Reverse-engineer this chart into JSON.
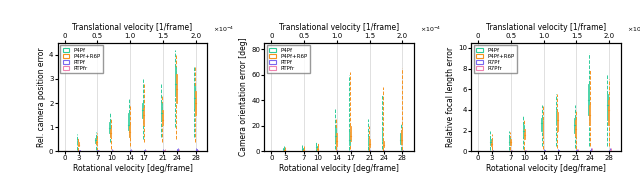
{
  "rotational_velocities": [
    0,
    3,
    7,
    10,
    14,
    17,
    21,
    24,
    28
  ],
  "trans_ticks_rot": [
    0,
    7,
    14,
    21,
    28
  ],
  "trans_tick_labels": [
    "0",
    "0.5",
    "1.0",
    "1.5",
    "2.0"
  ],
  "methods1": [
    "P4Pf",
    "P4Pf+R6P",
    "RTPf",
    "RTPfr"
  ],
  "methods2": [
    "P4Pf",
    "P4Pf+R6P",
    "RTPf",
    "RTPfr"
  ],
  "methods3": [
    "P4Pf",
    "P4Pf+R6P",
    "R7Pf",
    "R7Pfr"
  ],
  "colors": {
    "P4Pf": "#2ecc9a",
    "P4Pf+R6P": "#f5921e",
    "RTPf": "#7b68ee",
    "RTPfr": "#ee82b0",
    "R7Pf": "#7b68ee",
    "R7Pfr": "#ee82b0"
  },
  "plot1": {
    "ylabel": "Rel. camera position error",
    "ylim": [
      0,
      4.5
    ],
    "yticks": [
      0,
      1,
      2,
      3,
      4
    ],
    "boxes": {
      "P4Pf": {
        "0": [
          0,
          0,
          0,
          0,
          0
        ],
        "3": [
          0.05,
          0.25,
          0.35,
          0.45,
          0.7
        ],
        "7": [
          0.05,
          0.35,
          0.45,
          0.55,
          0.8
        ],
        "10": [
          0.4,
          0.75,
          0.95,
          1.2,
          1.6
        ],
        "14": [
          0.6,
          0.9,
          1.1,
          1.6,
          2.2
        ],
        "17": [
          0.5,
          1.4,
          1.7,
          2.0,
          3.0
        ],
        "21": [
          0.6,
          1.3,
          1.6,
          2.0,
          2.8
        ],
        "24": [
          1.0,
          2.3,
          2.8,
          3.5,
          4.2
        ],
        "28": [
          0.6,
          1.8,
          2.2,
          2.7,
          3.5
        ]
      },
      "P4Pf+R6P": {
        "0": [
          0,
          0,
          0,
          0,
          0
        ],
        "3": [
          0.02,
          0.2,
          0.28,
          0.38,
          0.6
        ],
        "7": [
          0.03,
          0.3,
          0.4,
          0.5,
          0.75
        ],
        "10": [
          0.1,
          0.6,
          0.75,
          0.95,
          1.4
        ],
        "14": [
          0.2,
          0.6,
          0.8,
          1.1,
          1.9
        ],
        "17": [
          0.4,
          1.1,
          1.5,
          1.8,
          2.8
        ],
        "21": [
          0.4,
          1.1,
          1.3,
          1.7,
          2.3
        ],
        "24": [
          0.5,
          2.0,
          2.6,
          3.2,
          4.0
        ],
        "28": [
          0.4,
          1.5,
          2.0,
          2.5,
          3.5
        ]
      },
      "RTPf": {
        "0": [
          0,
          0,
          0,
          0,
          0
        ],
        "3": [
          0,
          0,
          0.02,
          0.04,
          0.07
        ],
        "7": [
          0,
          0,
          0.02,
          0.04,
          0.07
        ],
        "10": [
          0,
          0,
          0.02,
          0.04,
          0.08
        ],
        "14": [
          0,
          0,
          0.02,
          0.05,
          0.1
        ],
        "17": [
          0,
          0,
          0.02,
          0.05,
          0.1
        ],
        "21": [
          0,
          0,
          0.03,
          0.06,
          0.1
        ],
        "24": [
          0,
          0.01,
          0.04,
          0.08,
          0.15
        ],
        "28": [
          0,
          0.01,
          0.04,
          0.08,
          0.15
        ]
      },
      "RTPfr": {
        "0": [
          0,
          0,
          0,
          0,
          0
        ],
        "3": [
          0,
          0,
          0.01,
          0.02,
          0.04
        ],
        "7": [
          0,
          0,
          0.01,
          0.02,
          0.04
        ],
        "10": [
          0,
          0,
          0.01,
          0.03,
          0.06
        ],
        "14": [
          0,
          0,
          0.01,
          0.03,
          0.07
        ],
        "17": [
          0,
          0,
          0.01,
          0.03,
          0.07
        ],
        "21": [
          0,
          0.01,
          0.02,
          0.04,
          0.08
        ],
        "24": [
          0,
          0.01,
          0.03,
          0.05,
          0.1
        ],
        "28": [
          0,
          0.01,
          0.03,
          0.05,
          0.1
        ]
      }
    }
  },
  "plot2": {
    "ylabel": "Camera orientation error [deg]",
    "ylim": [
      0,
      85
    ],
    "yticks": [
      0,
      20,
      40,
      60,
      80
    ],
    "boxes": {
      "P4Pf": {
        "0": [
          0,
          0,
          0,
          0,
          0
        ],
        "3": [
          0,
          0.8,
          1.5,
          2.5,
          4.5
        ],
        "7": [
          0,
          0.8,
          1.8,
          2.8,
          5.0
        ],
        "10": [
          0,
          1.5,
          3.0,
          4.5,
          8.0
        ],
        "14": [
          2,
          7,
          12,
          18,
          33
        ],
        "17": [
          1,
          5,
          9,
          15,
          60
        ],
        "21": [
          1,
          4,
          7,
          11,
          25
        ],
        "24": [
          2,
          8,
          11,
          17,
          44
        ],
        "28": [
          1,
          6,
          9,
          14,
          22
        ]
      },
      "P4Pf+R6P": {
        "0": [
          0,
          0,
          0,
          0,
          0
        ],
        "3": [
          0,
          0.4,
          0.8,
          1.5,
          3.0
        ],
        "7": [
          0,
          0.5,
          1.0,
          2.0,
          4.5
        ],
        "10": [
          0,
          1.0,
          2.0,
          3.5,
          7.0
        ],
        "14": [
          1,
          4,
          8,
          14,
          25
        ],
        "17": [
          2,
          8,
          12,
          20,
          62
        ],
        "21": [
          0.5,
          3,
          6,
          10,
          20
        ],
        "24": [
          0.5,
          3,
          5,
          8,
          50
        ],
        "28": [
          1,
          6,
          9,
          17,
          65
        ]
      },
      "RTPf": {
        "0": [
          0,
          0,
          0,
          0,
          0
        ],
        "3": [
          0,
          0,
          0.05,
          0.1,
          0.3
        ],
        "7": [
          0,
          0,
          0.05,
          0.15,
          0.35
        ],
        "10": [
          0,
          0,
          0.1,
          0.2,
          0.5
        ],
        "14": [
          0,
          0,
          0.1,
          0.3,
          0.7
        ],
        "17": [
          0,
          0,
          0.1,
          0.3,
          0.8
        ],
        "21": [
          0,
          0,
          0.15,
          0.4,
          1.0
        ],
        "24": [
          0,
          0.05,
          0.2,
          0.5,
          1.2
        ],
        "28": [
          0,
          0.05,
          0.2,
          0.5,
          1.2
        ]
      },
      "RTPfr": {
        "0": [
          0,
          0,
          0,
          0,
          0
        ],
        "3": [
          0,
          0,
          0.02,
          0.05,
          0.15
        ],
        "7": [
          0,
          0,
          0.02,
          0.06,
          0.18
        ],
        "10": [
          0,
          0,
          0.03,
          0.08,
          0.2
        ],
        "14": [
          0,
          0,
          0.03,
          0.1,
          0.25
        ],
        "17": [
          0,
          0,
          0.03,
          0.1,
          0.3
        ],
        "21": [
          0,
          0,
          0.05,
          0.15,
          0.4
        ],
        "24": [
          0,
          0,
          0.05,
          0.15,
          0.5
        ],
        "28": [
          0,
          0.02,
          0.07,
          0.2,
          0.6
        ]
      }
    }
  },
  "plot3": {
    "ylabel": "Relative focal length error",
    "ylim": [
      0,
      10.5
    ],
    "yticks": [
      0,
      2,
      4,
      6,
      8,
      10
    ],
    "boxes": {
      "P4Pf": {
        "0": [
          0,
          0,
          0,
          0,
          0
        ],
        "3": [
          0.1,
          0.6,
          0.9,
          1.2,
          2.0
        ],
        "7": [
          0.1,
          0.6,
          0.9,
          1.3,
          2.0
        ],
        "10": [
          0.2,
          1.5,
          2.0,
          2.5,
          3.5
        ],
        "14": [
          0.5,
          2.0,
          2.7,
          3.2,
          4.5
        ],
        "17": [
          0.5,
          2.5,
          3.3,
          4.0,
          5.5
        ],
        "21": [
          0.3,
          1.8,
          2.5,
          3.2,
          4.5
        ],
        "24": [
          0.5,
          3.5,
          5.0,
          6.5,
          9.5
        ],
        "28": [
          0.5,
          3.0,
          4.5,
          5.5,
          7.5
        ]
      },
      "P4Pf+R6P": {
        "0": [
          0,
          0,
          0,
          0,
          0
        ],
        "3": [
          0.1,
          0.5,
          0.75,
          1.0,
          1.7
        ],
        "7": [
          0.1,
          0.6,
          0.9,
          1.2,
          1.9
        ],
        "10": [
          0.1,
          1.2,
          1.6,
          2.2,
          3.0
        ],
        "14": [
          0.2,
          1.5,
          2.2,
          3.0,
          4.5
        ],
        "17": [
          0.3,
          2.0,
          3.0,
          3.8,
          5.5
        ],
        "21": [
          0.2,
          1.5,
          2.2,
          3.0,
          4.0
        ],
        "24": [
          0.5,
          2.5,
          3.5,
          4.5,
          8.0
        ],
        "28": [
          0.5,
          2.5,
          4.0,
          5.0,
          7.0
        ]
      },
      "R7Pf": {
        "0": [
          0,
          0,
          0,
          0,
          0
        ],
        "3": [
          0,
          0,
          0.02,
          0.05,
          0.1
        ],
        "7": [
          0,
          0,
          0.02,
          0.05,
          0.12
        ],
        "10": [
          0,
          0,
          0.03,
          0.07,
          0.15
        ],
        "14": [
          0,
          0,
          0.03,
          0.08,
          0.18
        ],
        "17": [
          0,
          0,
          0.04,
          0.1,
          0.2
        ],
        "21": [
          0,
          0.02,
          0.05,
          0.12,
          0.25
        ],
        "24": [
          0,
          0.02,
          0.06,
          0.15,
          0.3
        ],
        "28": [
          0,
          0.02,
          0.07,
          0.17,
          0.35
        ]
      },
      "R7Pfr": {
        "0": [
          0,
          0,
          0,
          0,
          0
        ],
        "3": [
          0,
          0,
          0.01,
          0.03,
          0.07
        ],
        "7": [
          0,
          0,
          0.01,
          0.03,
          0.08
        ],
        "10": [
          0,
          0,
          0.02,
          0.04,
          0.1
        ],
        "14": [
          0,
          0,
          0.02,
          0.05,
          0.12
        ],
        "17": [
          0,
          0,
          0.02,
          0.06,
          0.15
        ],
        "21": [
          0,
          0.01,
          0.03,
          0.07,
          0.18
        ],
        "24": [
          0,
          0.01,
          0.04,
          0.1,
          0.3
        ],
        "28": [
          0,
          0.02,
          0.05,
          0.12,
          0.35
        ]
      }
    }
  }
}
